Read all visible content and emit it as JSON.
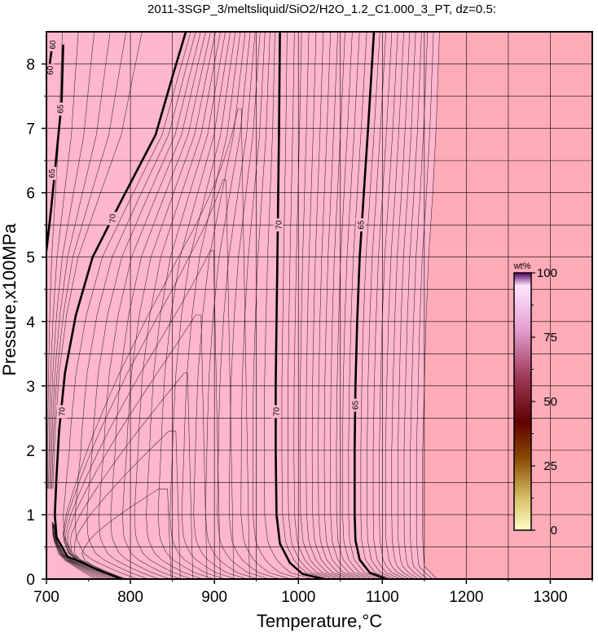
{
  "chart_data": {
    "type": "heatmap",
    "title": "2011-3SGP_3/meltsliquid/SiO2/H2O_1.2_C1.000_3_PT, dz=0.5:",
    "xlabel": "Temperature,°C",
    "ylabel": "Pressure,x100MPa",
    "xlim": [
      700,
      1350
    ],
    "ylim": [
      0,
      8.5
    ],
    "x_ticks": [
      "700",
      "800",
      "900",
      "1000",
      "1100",
      "1200",
      "1300"
    ],
    "y_ticks": [
      "0",
      "1",
      "2",
      "3",
      "4",
      "5",
      "6",
      "7",
      "8"
    ],
    "grid": true,
    "field_colors": {
      "liquid_region": "#ffb6cf",
      "outer_region": "#ffabb8"
    },
    "contour_interval": 0.5,
    "labeled_contours": [
      {
        "value": "70",
        "points": [
          [
            790,
            0
          ],
          [
            760,
            0.15
          ],
          [
            725,
            0.35
          ],
          [
            712,
            0.65
          ],
          [
            710,
            1.0
          ],
          [
            712,
            1.6
          ],
          [
            715,
            2.3
          ],
          [
            722,
            3.2
          ],
          [
            735,
            4.1
          ],
          [
            755,
            5.0
          ],
          [
            790,
            5.9
          ],
          [
            830,
            6.9
          ],
          [
            850,
            7.8
          ],
          [
            866,
            8.5
          ]
        ],
        "labels": [
          [
            718,
            2.6
          ],
          [
            778,
            5.6
          ]
        ]
      },
      {
        "value": "70",
        "points": [
          [
            1030,
            0
          ],
          [
            1005,
            0.08
          ],
          [
            990,
            0.25
          ],
          [
            978,
            0.55
          ],
          [
            974,
            1.0
          ],
          [
            973,
            2.0
          ],
          [
            973,
            3.0
          ],
          [
            974,
            4.0
          ],
          [
            975,
            5.0
          ],
          [
            976,
            6.0
          ],
          [
            977,
            7.0
          ],
          [
            978,
            8.5
          ]
        ],
        "labels": [
          [
            973,
            2.6
          ],
          [
            976,
            5.5
          ]
        ]
      },
      {
        "value": "65",
        "points": [
          [
            1105,
            0
          ],
          [
            1085,
            0.1
          ],
          [
            1073,
            0.3
          ],
          [
            1068,
            0.6
          ],
          [
            1067,
            1.0
          ],
          [
            1067,
            2.0
          ],
          [
            1068,
            3.0
          ],
          [
            1070,
            4.0
          ],
          [
            1073,
            5.0
          ],
          [
            1078,
            6.0
          ],
          [
            1083,
            7.0
          ],
          [
            1090,
            8.5
          ]
        ],
        "labels": [
          [
            1067,
            2.7
          ],
          [
            1074,
            5.5
          ]
        ]
      },
      {
        "value": "65",
        "points": [
          [
            700,
            5.1
          ],
          [
            706,
            5.8
          ],
          [
            712,
            6.6
          ],
          [
            718,
            7.4
          ],
          [
            720,
            8.3
          ]
        ],
        "labels": [
          [
            706,
            6.3
          ],
          [
            716,
            7.3
          ]
        ]
      },
      {
        "value": "60",
        "points": [
          [
            700,
            7.8
          ],
          [
            704,
            8.0
          ],
          [
            706,
            8.2
          ]
        ],
        "labels": [
          [
            704,
            7.9
          ],
          [
            707,
            8.3
          ]
        ]
      }
    ],
    "colorbar": {
      "title": "wt%",
      "range": [
        0,
        100
      ],
      "ticks": [
        "0",
        "25",
        "50",
        "75",
        "100"
      ],
      "colors": [
        "#ffffc8",
        "#d9c26a",
        "#8a4a00",
        "#600000",
        "#a03a5a",
        "#e4a0d0",
        "#ffe6ff",
        "#500060"
      ]
    }
  }
}
